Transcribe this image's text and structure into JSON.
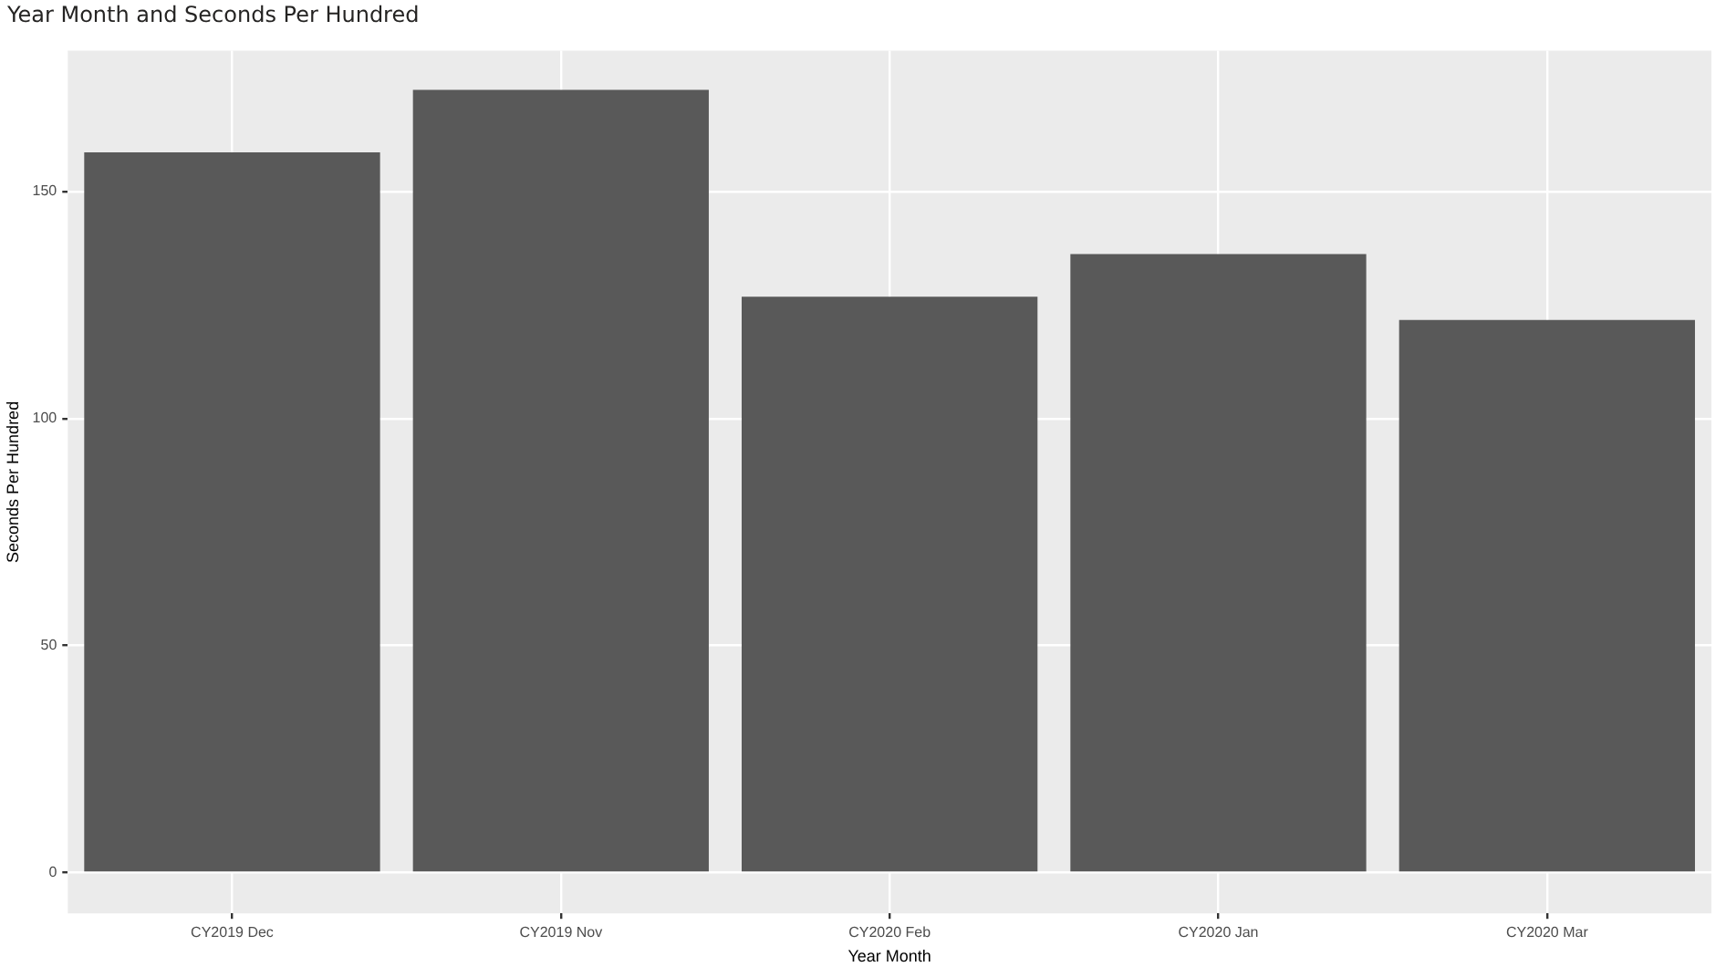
{
  "chart_data": {
    "type": "bar",
    "title": "Year Month and Seconds Per Hundred",
    "xlabel": "Year Month",
    "ylabel": "Seconds Per Hundred",
    "categories": [
      "CY2019 Dec",
      "CY2019 Nov",
      "CY2020 Feb",
      "CY2020 Jan",
      "CY2020 Mar"
    ],
    "values": [
      158.6,
      172.4,
      126.8,
      136.2,
      121.7
    ],
    "color": "#595959",
    "ylim": [
      -9,
      181
    ],
    "yticks": [
      0,
      50,
      100,
      150
    ],
    "grid": true
  }
}
